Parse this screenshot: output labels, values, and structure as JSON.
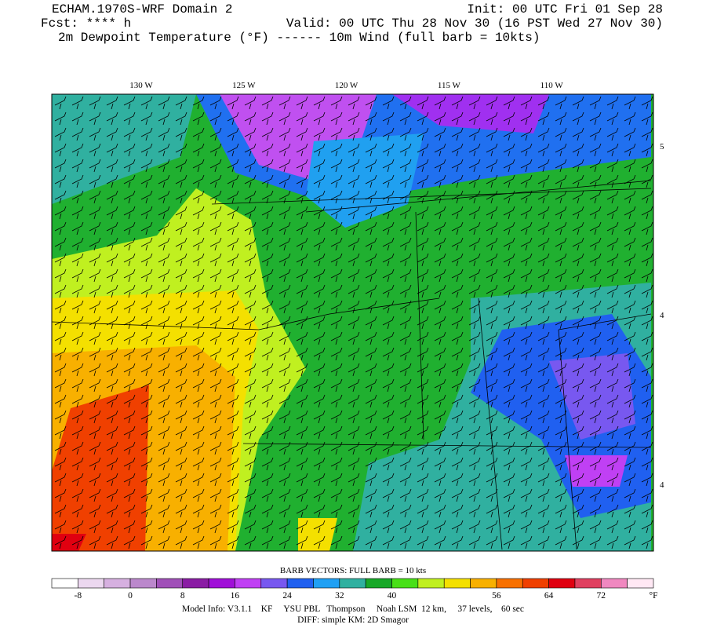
{
  "header": {
    "model": "ECHAM.1970S-WRF Domain 2",
    "init": "Init: 00 UTC Fri 01 Sep 28",
    "fcst": "Fcst: **** h",
    "valid": "Valid: 00 UTC Thu 28 Nov 30 (16 PST Wed 27 Nov 30)",
    "field": "2m Dewpoint Temperature (°F) ------ 10m Wind (full barb = 10kts)"
  },
  "map": {
    "lon_labels": [
      "130 W",
      "125 W",
      "120 W",
      "115 W",
      "110 W"
    ],
    "lat_labels": [
      "5",
      "4",
      "4"
    ]
  },
  "colorbar": {
    "title": "BARB VECTORS:  FULL BARB = 10 kts",
    "labels": [
      -8,
      0,
      8,
      16,
      24,
      32,
      40,
      56,
      64,
      72
    ],
    "unit": "°F",
    "colors": [
      "#ffffff",
      "#ecd8f0",
      "#d6b0e0",
      "#bb88cc",
      "#a050b8",
      "#8a1ca4",
      "#a010d8",
      "#c040f4",
      "#7858f0",
      "#2060f0",
      "#20a0f4",
      "#30b0a0",
      "#18a828",
      "#48e018",
      "#c0f020",
      "#f4e000",
      "#f8b000",
      "#f87000",
      "#f04000",
      "#e00010",
      "#e04060",
      "#f088c0",
      "#ffe8f4"
    ]
  },
  "footer": {
    "line1": "Model Info: V3.1.1    KF     YSU PBL   Thompson     Noah LSM  12 km,     37 levels,    60 sec",
    "line2": "DIFF: simple KM: 2D Smagor"
  }
}
